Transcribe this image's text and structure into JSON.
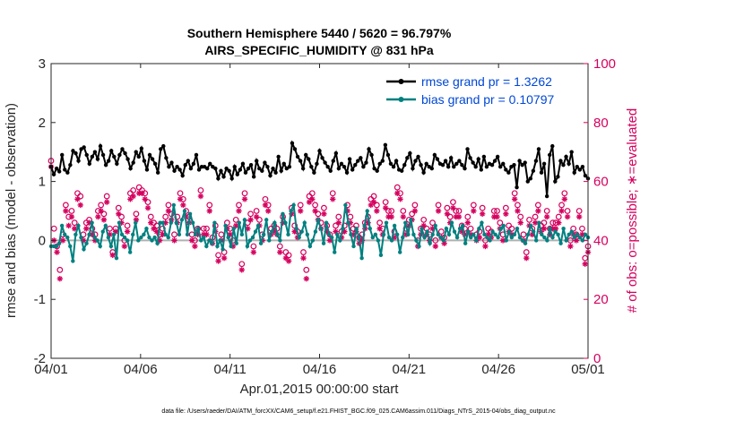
{
  "chart_data": {
    "type": "line",
    "title": "Southern Hemisphere 5440 / 5620 = 96.797%",
    "subtitle": "AIRS_SPECIFIC_HUMIDITY @ 831 hPa",
    "xlabel": "Apr.01,2015 00:00:00 start",
    "ylabel": "rmse and bias (model - observation)",
    "ylabel_right": "# of obs: o=possible; ∗=evaluated",
    "footnote": "data file: /Users/raeder/DAI/ATM_forcXX/CAM6_setup/f.e21.FHIST_BGC.f09_025.CAM6assim.011/Diags_NTrS_2015-04/obs_diag_output.nc",
    "xlim": [
      0,
      30
    ],
    "ylim": [
      -2,
      3
    ],
    "ylim_right": [
      0,
      100
    ],
    "x_ticks": [
      0,
      5,
      10,
      15,
      20,
      25,
      30
    ],
    "x_tick_labels": [
      "04/01",
      "04/06",
      "04/11",
      "04/16",
      "04/21",
      "04/26",
      "05/01"
    ],
    "y_ticks": [
      -2,
      -1,
      0,
      1,
      2,
      3
    ],
    "y_tick_labels": [
      "-2",
      "-1",
      "0",
      "1",
      "2",
      "3"
    ],
    "y_right_ticks": [
      0,
      20,
      40,
      60,
      80,
      100
    ],
    "y_right_tick_labels": [
      "0",
      "20",
      "40",
      "60",
      "80",
      "100"
    ],
    "legend": [
      {
        "label": "rmse grand pr = 1.3262",
        "color": "#000000"
      },
      {
        "label": "bias grand pr = 0.10797",
        "color": "#008080"
      }
    ],
    "zero_line": 0,
    "series": [
      {
        "name": "rmse",
        "color": "#000000",
        "values": [
          1.25,
          1.12,
          1.22,
          1.17,
          1.45,
          1.2,
          1.15,
          1.28,
          1.52,
          1.48,
          1.35,
          1.55,
          1.58,
          1.45,
          1.3,
          1.42,
          1.5,
          1.38,
          1.6,
          1.45,
          1.28,
          1.35,
          1.52,
          1.42,
          1.3,
          1.45,
          1.55,
          1.48,
          1.38,
          1.22,
          1.32,
          1.5,
          1.42,
          1.56,
          1.35,
          1.2,
          1.45,
          1.38,
          1.3,
          1.15,
          1.55,
          1.6,
          1.4,
          1.25,
          1.32,
          1.18,
          1.25,
          1.2,
          1.1,
          1.28,
          1.35,
          1.22,
          1.3,
          1.45,
          1.2,
          1.25,
          1.25,
          1.22,
          1.3,
          1.25,
          1.22,
          1.05,
          1.18,
          1.08,
          1.22,
          1.18,
          1.05,
          1.25,
          1.12,
          1.2,
          1.3,
          1.15,
          1.22,
          1.28,
          1.08,
          1.35,
          1.22,
          1.18,
          1.32,
          1.25,
          1.1,
          1.22,
          1.15,
          1.42,
          1.18,
          1.3,
          1.22,
          1.25,
          1.65,
          1.55,
          1.42,
          1.35,
          1.22,
          1.45,
          1.38,
          1.25,
          1.15,
          1.3,
          1.52,
          1.4,
          1.32,
          1.25,
          1.18,
          1.35,
          1.48,
          1.22,
          1.3,
          1.25,
          1.15,
          1.38,
          1.2,
          1.28,
          1.35,
          1.4,
          1.25,
          1.32,
          1.55,
          1.45,
          1.22,
          1.18,
          1.3,
          1.35,
          1.62,
          1.45,
          1.3,
          1.25,
          1.35,
          1.2,
          1.18,
          1.28,
          1.4,
          1.48,
          1.22,
          1.35,
          1.42,
          1.28,
          1.15,
          1.3,
          1.25,
          1.22,
          1.45,
          1.38,
          1.3,
          1.28,
          1.35,
          1.25,
          1.4,
          1.25,
          1.3,
          1.35,
          1.28,
          1.22,
          1.55,
          1.4,
          1.32,
          1.25,
          1.38,
          1.2,
          1.42,
          1.25,
          1.3,
          1.28,
          1.35,
          1.42,
          1.25,
          1.3,
          1.2,
          1.15,
          1.25,
          1.28,
          0.9,
          1.35,
          1.28,
          1.32,
          1.0,
          1.05,
          1.18,
          1.35,
          1.55,
          1.15,
          1.3,
          0.75,
          1.45,
          1.6,
          1.0,
          1.08,
          1.35,
          1.28,
          1.42,
          1.3,
          1.5,
          1.15,
          1.25,
          1.2,
          1.25,
          1.1,
          1.05
        ]
      },
      {
        "name": "bias",
        "color": "#008080",
        "values": [
          -0.1,
          -0.1,
          -0.1,
          -0.05,
          0.25,
          0.1,
          0.05,
          -0.1,
          -0.35,
          0.1,
          0.25,
          0.05,
          -0.15,
          -0.05,
          0.1,
          0.3,
          0.05,
          0.0,
          -0.1,
          0.15,
          0.25,
          0.05,
          -0.1,
          0.1,
          -0.3,
          0.3,
          0.1,
          0.05,
          0.0,
          -0.2,
          0.1,
          0.3,
          0.0,
          0.05,
          0.1,
          0.2,
          0.05,
          0.0,
          0.05,
          -0.05,
          0.3,
          0.3,
          0.1,
          0.05,
          0.3,
          0.6,
          0.3,
          0.1,
          0.35,
          0.5,
          0.1,
          0.45,
          0.3,
          0.1,
          0.2,
          0.0,
          0.05,
          -0.1,
          0.0,
          -0.05,
          0.3,
          -0.1,
          0.0,
          -0.15,
          0.25,
          0.05,
          -0.1,
          0.2,
          -0.05,
          0.3,
          0.1,
          0.35,
          -0.1,
          0.0,
          0.05,
          0.15,
          0.25,
          -0.05,
          0.1,
          0.35,
          0.0,
          0.15,
          0.3,
          0.1,
          0.0,
          0.45,
          0.3,
          0.1,
          0.5,
          0.6,
          0.2,
          0.05,
          0.15,
          0.3,
          0.1,
          -0.1,
          0.0,
          0.15,
          0.35,
          0.2,
          -0.05,
          0.3,
          0.1,
          0.05,
          -0.2,
          0.1,
          0.0,
          0.2,
          0.6,
          0.3,
          0.1,
          -0.1,
          0.2,
          0.05,
          -0.3,
          0.25,
          0.5,
          0.2,
          0.05,
          0.1,
          0.0,
          -0.25,
          0.1,
          0.3,
          0.05,
          0.0,
          0.25,
          0.1,
          -0.2,
          0.05,
          0.3,
          0.1,
          0.35,
          0.1,
          0.0,
          -0.1,
          0.2,
          0.05,
          0.15,
          -0.05,
          0.1,
          0.25,
          0.1,
          0.05,
          0.0,
          0.2,
          0.1,
          0.3,
          0.15,
          0.05,
          0.2,
          0.25,
          -0.05,
          0.15,
          0.05,
          0.1,
          0.0,
          0.2,
          0.3,
          0.1,
          0.05,
          0.0,
          0.15,
          0.1,
          0.05,
          0.2,
          0.25,
          0.0,
          0.15,
          0.05,
          0.1,
          0.2,
          0.05,
          0.0,
          -0.05,
          0.1,
          0.25,
          0.15,
          0.0,
          0.3,
          0.1,
          0.05,
          0.0,
          0.2,
          0.05,
          0.15,
          0.1,
          -0.05,
          0.2,
          0.0,
          0.1,
          0.15,
          0.05,
          0.1,
          0.05,
          0.0,
          0.1,
          0.05
        ]
      }
    ],
    "count_series": [
      {
        "name": "possible",
        "marker": "o",
        "color": "#d6005e",
        "values": [
          67,
          44,
          38,
          30,
          42,
          52,
          48,
          50,
          46,
          56,
          55,
          42,
          46,
          47,
          44,
          42,
          50,
          52,
          49,
          55,
          44,
          36,
          44,
          51,
          48,
          40,
          45,
          56,
          57,
          49,
          58,
          57,
          56,
          53,
          48,
          46,
          45,
          42,
          44,
          48,
          52,
          49,
          42,
          48,
          56,
          54,
          50,
          48,
          42,
          40,
          44,
          57,
          44,
          44,
          52,
          41,
          45,
          35,
          42,
          36,
          46,
          44,
          40,
          47,
          52,
          32,
          56,
          46,
          49,
          38,
          50,
          47,
          42,
          54,
          52,
          44,
          45,
          44,
          38,
          48,
          36,
          35,
          51,
          45,
          43,
          52,
          36,
          30,
          55,
          56,
          52,
          49,
          46,
          51,
          45,
          42,
          56,
          45,
          48,
          43,
          45,
          52,
          48,
          44,
          45,
          41,
          42,
          46,
          48,
          54,
          55,
          52,
          46,
          44,
          53,
          50,
          50,
          43,
          58,
          56,
          50,
          44,
          47,
          49,
          52,
          40,
          44,
          47,
          44,
          42,
          46,
          40,
          52,
          43,
          41,
          51,
          48,
          53,
          50,
          50,
          45,
          44,
          48,
          44,
          52,
          42,
          43,
          51,
          40,
          44,
          43,
          50,
          50,
          46,
          42,
          51,
          45,
          44,
          56,
          52,
          48,
          42,
          36,
          47,
          44,
          48,
          52,
          45,
          46,
          50,
          44,
          46,
          46,
          48,
          52,
          56,
          50,
          40,
          44,
          42,
          50,
          44,
          34,
          38
        ]
      },
      {
        "name": "evaluated",
        "marker": "*",
        "color": "#d6005e",
        "values": [
          65,
          40,
          36,
          27,
          40,
          50,
          45,
          48,
          44,
          54,
          52,
          40,
          44,
          46,
          42,
          40,
          48,
          50,
          47,
          53,
          42,
          35,
          43,
          49,
          46,
          38,
          43,
          54,
          55,
          47,
          56,
          56,
          54,
          51,
          46,
          44,
          43,
          40,
          42,
          46,
          50,
          47,
          40,
          46,
          54,
          52,
          48,
          46,
          40,
          38,
          42,
          55,
          42,
          42,
          50,
          39,
          43,
          33,
          40,
          34,
          44,
          42,
          38,
          45,
          50,
          30,
          54,
          44,
          47,
          36,
          48,
          45,
          40,
          52,
          50,
          42,
          43,
          42,
          36,
          46,
          34,
          33,
          49,
          43,
          41,
          50,
          34,
          27,
          53,
          54,
          50,
          47,
          44,
          49,
          43,
          40,
          54,
          43,
          46,
          41,
          43,
          50,
          46,
          42,
          43,
          39,
          40,
          44,
          46,
          52,
          53,
          50,
          44,
          42,
          51,
          48,
          48,
          41,
          56,
          54,
          48,
          42,
          45,
          47,
          50,
          38,
          42,
          45,
          42,
          40,
          44,
          38,
          50,
          41,
          39,
          49,
          46,
          51,
          48,
          48,
          43,
          42,
          46,
          42,
          50,
          40,
          41,
          49,
          38,
          42,
          41,
          48,
          48,
          44,
          40,
          49,
          43,
          42,
          54,
          50,
          46,
          40,
          34,
          45,
          42,
          46,
          50,
          43,
          44,
          48,
          42,
          44,
          44,
          46,
          50,
          54,
          48,
          38,
          42,
          40,
          48,
          42,
          32,
          36
        ]
      }
    ]
  }
}
